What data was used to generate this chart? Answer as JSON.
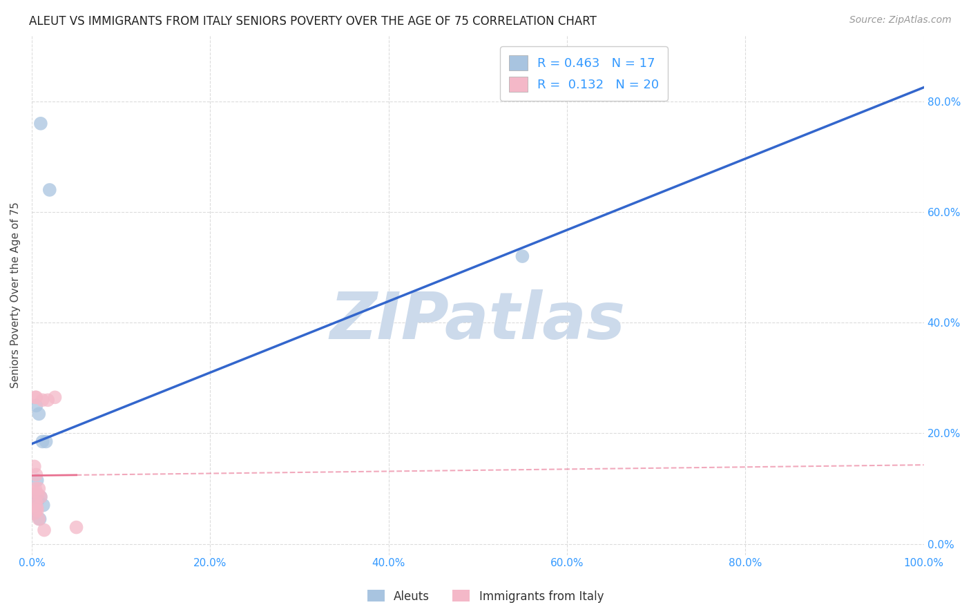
{
  "title": "ALEUT VS IMMIGRANTS FROM ITALY SENIORS POVERTY OVER THE AGE OF 75 CORRELATION CHART",
  "source": "Source: ZipAtlas.com",
  "ylabel": "Seniors Poverty Over the Age of 75",
  "xlim": [
    0,
    1.0
  ],
  "ylim": [
    -0.02,
    0.92
  ],
  "xticks": [
    0.0,
    0.2,
    0.4,
    0.6,
    0.8,
    1.0
  ],
  "xtick_labels": [
    "0.0%",
    "20.0%",
    "40.0%",
    "60.0%",
    "80.0%",
    "100.0%"
  ],
  "yticks": [
    0.0,
    0.2,
    0.4,
    0.6,
    0.8
  ],
  "ytick_labels": [
    "0.0%",
    "20.0%",
    "40.0%",
    "60.0%",
    "80.0%"
  ],
  "aleuts_R": 0.463,
  "aleuts_N": 17,
  "italy_R": 0.132,
  "italy_N": 20,
  "aleut_color": "#a8c4e0",
  "italy_color": "#f4b8c8",
  "aleut_line_color": "#3366cc",
  "italy_line_color": "#e87090",
  "watermark": "ZIPatlas",
  "watermark_color": "#ccdaeb",
  "aleuts_x": [
    0.01,
    0.02,
    0.005,
    0.008,
    0.012,
    0.016,
    0.006,
    0.004,
    0.003,
    0.01,
    0.013,
    0.55,
    0.007,
    0.003,
    0.004,
    0.002,
    0.009
  ],
  "aleuts_y": [
    0.76,
    0.64,
    0.25,
    0.235,
    0.185,
    0.185,
    0.115,
    0.09,
    0.075,
    0.085,
    0.07,
    0.52,
    0.08,
    0.065,
    0.06,
    0.055,
    0.045
  ],
  "italy_x": [
    0.004,
    0.005,
    0.008,
    0.012,
    0.018,
    0.026,
    0.003,
    0.007,
    0.01,
    0.005,
    0.006,
    0.003,
    0.008,
    0.014,
    0.003,
    0.005,
    0.004,
    0.003,
    0.006,
    0.05
  ],
  "italy_y": [
    0.265,
    0.265,
    0.1,
    0.26,
    0.26,
    0.265,
    0.095,
    0.09,
    0.085,
    0.075,
    0.06,
    0.055,
    0.045,
    0.025,
    0.14,
    0.125,
    0.1,
    0.07,
    0.065,
    0.03
  ],
  "title_fontsize": 12,
  "axis_label_fontsize": 11,
  "tick_fontsize": 11,
  "legend_fontsize": 13,
  "source_fontsize": 10,
  "background_color": "#ffffff",
  "grid_color": "#cccccc",
  "axis_color": "#3399ff",
  "tick_color": "#3399ff"
}
